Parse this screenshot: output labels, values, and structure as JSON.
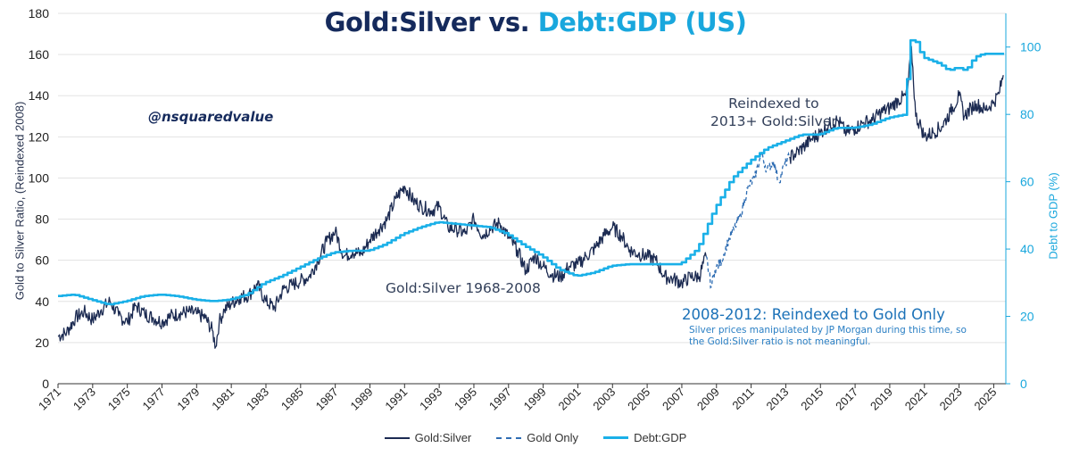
{
  "chart_data": {
    "type": "line",
    "title": {
      "part1": "Gold:Silver",
      "part2": " vs. ",
      "part3": "Debt:GDP (US)"
    },
    "watermark": "@nsquaredvalue",
    "ylabel_left": "Gold to Silver Ratio, (Reindexed 2008)",
    "ylabel_right": "Debt to GDP (%)",
    "ylim_left": [
      0,
      180
    ],
    "ylim_right": [
      0,
      110
    ],
    "xlim": [
      1971,
      2025.7
    ],
    "yticks_left": [
      "0",
      "20",
      "40",
      "60",
      "80",
      "100",
      "120",
      "140",
      "160",
      "180"
    ],
    "yticks_right": [
      "0",
      "20",
      "40",
      "60",
      "80",
      "100"
    ],
    "xticks": [
      "1971",
      "1973",
      "1975",
      "1977",
      "1979",
      "1981",
      "1983",
      "1985",
      "1987",
      "1989",
      "1991",
      "1993",
      "1995",
      "1997",
      "1999",
      "2001",
      "2003",
      "2005",
      "2007",
      "2009",
      "2011",
      "2013",
      "2015",
      "2017",
      "2019",
      "2021",
      "2023",
      "2025"
    ],
    "grid": true,
    "legend_position": "bottom",
    "legend": [
      "Gold:Silver",
      "Gold Only",
      "Debt:GDP"
    ],
    "colors": {
      "gold_silver": "#1c2b52",
      "gold_only": "#2f6db3",
      "debt_gdp": "#1ab0e8",
      "axis_right": "#19a7dd"
    },
    "annotations": {
      "reindexed": [
        "Reindexed to",
        "2013+ Gold:Silver"
      ],
      "gold_silver_period": "Gold:Silver 1968-2008",
      "gold_only_head": "2008-2012: Reindexed to Gold Only",
      "gold_only_note": [
        "Silver prices manipulated by JP Morgan during this time, so",
        "the Gold:Silver ratio is not meaningful."
      ]
    },
    "series": [
      {
        "name": "Gold:Silver",
        "axis": "left",
        "points": [
          [
            1971.0,
            23
          ],
          [
            1971.5,
            25
          ],
          [
            1972.0,
            32
          ],
          [
            1972.5,
            35
          ],
          [
            1973.0,
            31
          ],
          [
            1973.5,
            36
          ],
          [
            1974.0,
            40
          ],
          [
            1974.5,
            33
          ],
          [
            1975.0,
            30
          ],
          [
            1975.5,
            38
          ],
          [
            1976.0,
            34
          ],
          [
            1976.5,
            32
          ],
          [
            1977.0,
            30
          ],
          [
            1977.5,
            33
          ],
          [
            1978.0,
            34
          ],
          [
            1978.5,
            35
          ],
          [
            1979.0,
            34
          ],
          [
            1979.5,
            32
          ],
          [
            1979.9,
            26
          ],
          [
            1980.1,
            18
          ],
          [
            1980.3,
            30
          ],
          [
            1980.6,
            36
          ],
          [
            1981.0,
            39
          ],
          [
            1981.5,
            42
          ],
          [
            1982.0,
            43
          ],
          [
            1982.5,
            48
          ],
          [
            1983.0,
            40
          ],
          [
            1983.5,
            37
          ],
          [
            1984.0,
            46
          ],
          [
            1984.5,
            48
          ],
          [
            1985.0,
            50
          ],
          [
            1985.5,
            52
          ],
          [
            1986.0,
            60
          ],
          [
            1986.5,
            69
          ],
          [
            1987.0,
            74
          ],
          [
            1987.5,
            62
          ],
          [
            1988.0,
            64
          ],
          [
            1988.5,
            63
          ],
          [
            1989.0,
            70
          ],
          [
            1989.5,
            75
          ],
          [
            1990.0,
            80
          ],
          [
            1990.5,
            90
          ],
          [
            1991.0,
            96
          ],
          [
            1991.5,
            89
          ],
          [
            1992.0,
            86
          ],
          [
            1992.5,
            84
          ],
          [
            1993.0,
            86
          ],
          [
            1993.5,
            76
          ],
          [
            1994.0,
            75
          ],
          [
            1994.5,
            73
          ],
          [
            1995.0,
            80
          ],
          [
            1995.5,
            72
          ],
          [
            1996.0,
            76
          ],
          [
            1996.5,
            78
          ],
          [
            1997.0,
            71
          ],
          [
            1997.5,
            65
          ],
          [
            1998.0,
            55
          ],
          [
            1998.5,
            62
          ],
          [
            1999.0,
            57
          ],
          [
            1999.5,
            53
          ],
          [
            2000.0,
            52
          ],
          [
            2000.5,
            57
          ],
          [
            2001.0,
            58
          ],
          [
            2001.5,
            62
          ],
          [
            2002.0,
            66
          ],
          [
            2002.5,
            72
          ],
          [
            2003.0,
            76
          ],
          [
            2003.5,
            72
          ],
          [
            2004.0,
            65
          ],
          [
            2004.5,
            63
          ],
          [
            2005.0,
            62
          ],
          [
            2005.5,
            60
          ],
          [
            2006.0,
            52
          ],
          [
            2006.5,
            51
          ],
          [
            2007.0,
            49
          ],
          [
            2007.5,
            52
          ],
          [
            2008.0,
            52
          ],
          [
            2008.4,
            62
          ]
        ]
      },
      {
        "name": "Gold Only",
        "axis": "left",
        "points": [
          [
            2008.4,
            62
          ],
          [
            2008.7,
            47
          ],
          [
            2008.9,
            55
          ],
          [
            2009.3,
            60
          ],
          [
            2009.7,
            70
          ],
          [
            2010.0,
            75
          ],
          [
            2010.4,
            82
          ],
          [
            2010.8,
            95
          ],
          [
            2011.2,
            100
          ],
          [
            2011.6,
            112
          ],
          [
            2011.9,
            104
          ],
          [
            2012.3,
            108
          ],
          [
            2012.6,
            98
          ],
          [
            2012.9,
            106
          ],
          [
            2013.2,
            110
          ]
        ]
      },
      {
        "name": "Gold:Silver",
        "axis": "left",
        "points": [
          [
            2013.2,
            110
          ],
          [
            2013.6,
            112
          ],
          [
            2014.0,
            115
          ],
          [
            2014.5,
            119
          ],
          [
            2015.0,
            122
          ],
          [
            2015.5,
            126
          ],
          [
            2016.0,
            128
          ],
          [
            2016.5,
            122
          ],
          [
            2017.0,
            124
          ],
          [
            2017.5,
            127
          ],
          [
            2018.0,
            128
          ],
          [
            2018.5,
            132
          ],
          [
            2019.0,
            134
          ],
          [
            2019.5,
            138
          ],
          [
            2020.0,
            140
          ],
          [
            2020.25,
            164
          ],
          [
            2020.5,
            130
          ],
          [
            2020.8,
            125
          ],
          [
            2021.0,
            120
          ],
          [
            2021.5,
            122
          ],
          [
            2022.0,
            125
          ],
          [
            2022.5,
            132
          ],
          [
            2023.0,
            140
          ],
          [
            2023.3,
            130
          ],
          [
            2023.7,
            134
          ],
          [
            2024.0,
            136
          ],
          [
            2024.5,
            133
          ],
          [
            2025.0,
            137
          ],
          [
            2025.3,
            141
          ],
          [
            2025.55,
            150
          ]
        ]
      },
      {
        "name": "Debt:GDP",
        "axis": "right",
        "points": [
          [
            1971.0,
            26
          ],
          [
            1972.0,
            26.5
          ],
          [
            1973.0,
            25
          ],
          [
            1974.0,
            23.5
          ],
          [
            1975.0,
            24.5
          ],
          [
            1976.0,
            26
          ],
          [
            1977.0,
            26.5
          ],
          [
            1978.0,
            26
          ],
          [
            1979.0,
            25
          ],
          [
            1980.0,
            24.5
          ],
          [
            1981.0,
            25
          ],
          [
            1982.0,
            26.5
          ],
          [
            1983.0,
            30
          ],
          [
            1984.0,
            32
          ],
          [
            1985.0,
            34.5
          ],
          [
            1986.0,
            37
          ],
          [
            1987.0,
            39
          ],
          [
            1988.0,
            39.5
          ],
          [
            1989.0,
            39.5
          ],
          [
            1990.0,
            41.5
          ],
          [
            1991.0,
            44.5
          ],
          [
            1992.0,
            46.5
          ],
          [
            1993.0,
            48
          ],
          [
            1994.0,
            47.5
          ],
          [
            1995.0,
            47
          ],
          [
            1996.0,
            46.5
          ],
          [
            1997.0,
            44.5
          ],
          [
            1998.0,
            41
          ],
          [
            1999.0,
            38
          ],
          [
            2000.0,
            34
          ],
          [
            2001.0,
            32
          ],
          [
            2002.0,
            33
          ],
          [
            2003.0,
            35
          ],
          [
            2004.0,
            35.5
          ],
          [
            2005.0,
            35.5
          ],
          [
            2006.0,
            35.5
          ],
          [
            2007.0,
            35.5
          ],
          [
            2008.0,
            40
          ],
          [
            2009.0,
            52
          ],
          [
            2010.0,
            61
          ],
          [
            2011.0,
            66
          ],
          [
            2012.0,
            70
          ],
          [
            2013.0,
            72
          ],
          [
            2014.0,
            74
          ],
          [
            2015.0,
            74
          ],
          [
            2016.0,
            76
          ],
          [
            2017.0,
            76
          ],
          [
            2018.0,
            77
          ],
          [
            2019.0,
            79
          ],
          [
            2020.0,
            80
          ],
          [
            2020.2,
            101
          ],
          [
            2020.5,
            103
          ],
          [
            2021.0,
            97
          ],
          [
            2022.0,
            95
          ],
          [
            2022.5,
            93
          ],
          [
            2023.0,
            94
          ],
          [
            2023.5,
            93
          ],
          [
            2024.0,
            97
          ],
          [
            2024.5,
            98
          ],
          [
            2025.6,
            98
          ]
        ]
      }
    ]
  }
}
